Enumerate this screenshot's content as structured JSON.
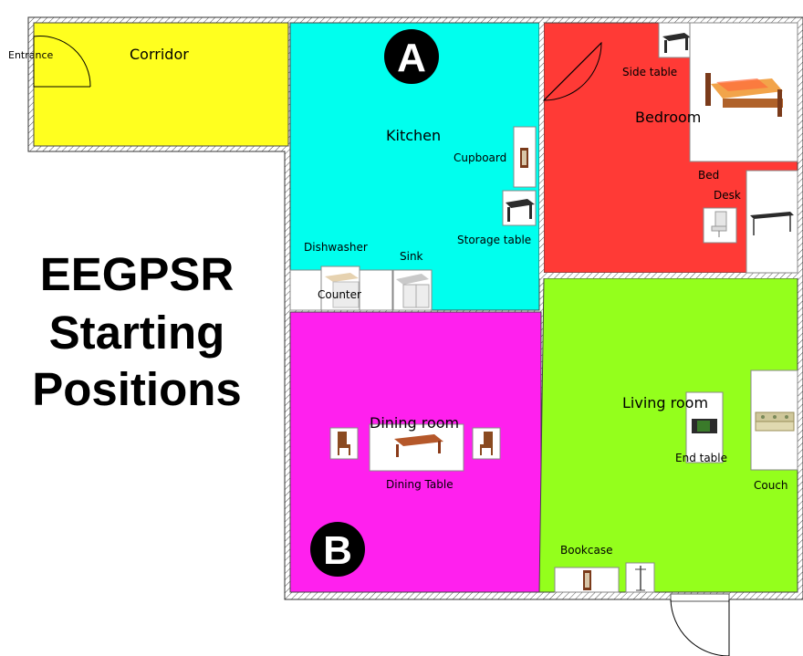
{
  "title": {
    "line1": "EEGPSR",
    "line2": "Starting",
    "line3": "Positions"
  },
  "rooms": {
    "corridor": {
      "label": "Corridor",
      "color": "#ffff1f"
    },
    "kitchen": {
      "label": "Kitchen",
      "color": "#00ffee"
    },
    "bedroom": {
      "label": "Bedroom",
      "color": "#ff3a36"
    },
    "dining": {
      "label": "Dining room",
      "color": "#ff20ee"
    },
    "living": {
      "label": "Living room",
      "color": "#94ff1c"
    }
  },
  "labels": {
    "entrance": "Entrance",
    "cupboard": "Cupboard",
    "storage_table": "Storage table",
    "dishwasher": "Dishwasher",
    "sink": "Sink",
    "counter": "Counter",
    "side_table": "Side table",
    "bed": "Bed",
    "desk": "Desk",
    "dining_table": "Dining Table",
    "end_table": "End table",
    "couch": "Couch",
    "bookcase": "Bookcase"
  },
  "markers": {
    "a": "A",
    "b": "B"
  },
  "icons": [
    "door-swing-icon",
    "bed-icon",
    "table-icon",
    "chair-icon",
    "couch-icon",
    "cabinet-icon",
    "sink-icon",
    "coat-rack-icon"
  ]
}
